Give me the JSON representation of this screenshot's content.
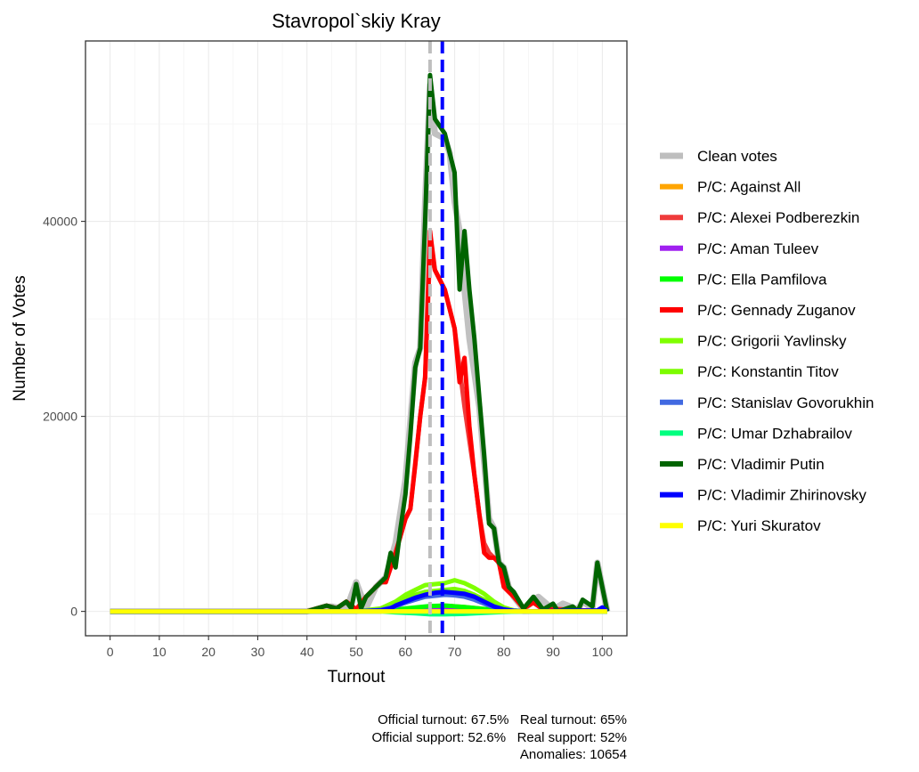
{
  "chart_data": {
    "type": "line",
    "title": "Stavropol`skiy Kray",
    "xlabel": "Turnout",
    "ylabel": "Number of Votes",
    "xlim": [
      -5,
      105
    ],
    "ylim": [
      -2500,
      58500
    ],
    "x_ticks": [
      0,
      10,
      20,
      30,
      40,
      50,
      60,
      70,
      80,
      90,
      100
    ],
    "y_ticks": [
      0,
      20000,
      40000
    ],
    "grid": true,
    "legend_position": "right",
    "vlines": [
      {
        "x": 65,
        "color": "#bebebe",
        "style": "dashed"
      },
      {
        "x": 67.5,
        "color": "#0000ff",
        "style": "dashed"
      }
    ],
    "series": [
      {
        "name": "Clean votes",
        "color": "#bebebe",
        "points": [
          [
            0,
            0
          ],
          [
            40,
            0
          ],
          [
            45,
            500
          ],
          [
            48,
            200
          ],
          [
            50,
            3000
          ],
          [
            52,
            300
          ],
          [
            54,
            2500
          ],
          [
            56,
            3500
          ],
          [
            58,
            7000
          ],
          [
            60,
            13500
          ],
          [
            62,
            25500
          ],
          [
            63,
            27000
          ],
          [
            64,
            42000
          ],
          [
            65,
            54000
          ],
          [
            66,
            49000
          ],
          [
            68,
            48500
          ],
          [
            69,
            47000
          ],
          [
            70,
            42000
          ],
          [
            71,
            39000
          ],
          [
            72,
            33000
          ],
          [
            73,
            28000
          ],
          [
            75,
            21000
          ],
          [
            77,
            9500
          ],
          [
            78,
            8500
          ],
          [
            79,
            5000
          ],
          [
            80,
            4500
          ],
          [
            81,
            2500
          ],
          [
            82,
            1500
          ],
          [
            84,
            200
          ],
          [
            87,
            1500
          ],
          [
            90,
            200
          ],
          [
            92,
            800
          ],
          [
            95,
            200
          ],
          [
            96,
            1000
          ],
          [
            98,
            300
          ],
          [
            99,
            5000
          ],
          [
            101,
            0
          ]
        ]
      },
      {
        "name": "P/C: Against All",
        "color": "#ffa500",
        "points": [
          [
            0,
            0
          ],
          [
            55,
            0
          ],
          [
            60,
            250
          ],
          [
            65,
            500
          ],
          [
            68,
            600
          ],
          [
            72,
            450
          ],
          [
            78,
            150
          ],
          [
            82,
            0
          ],
          [
            101,
            0
          ]
        ]
      },
      {
        "name": "P/C: Alexei Podberezkin",
        "color": "#ef3b3b",
        "points": [
          [
            0,
            0
          ],
          [
            40,
            0
          ],
          [
            42,
            300
          ],
          [
            44,
            600
          ],
          [
            46,
            300
          ],
          [
            48,
            1000
          ],
          [
            50,
            200
          ],
          [
            52,
            1500
          ],
          [
            54,
            2500
          ],
          [
            55,
            3000
          ],
          [
            56,
            3000
          ],
          [
            58,
            6000
          ],
          [
            60,
            9500
          ],
          [
            61,
            10500
          ],
          [
            63,
            20000
          ],
          [
            64,
            24000
          ],
          [
            65,
            37000
          ],
          [
            66,
            35000
          ],
          [
            68,
            33000
          ],
          [
            70,
            29000
          ],
          [
            71,
            25000
          ],
          [
            72,
            21000
          ],
          [
            74,
            14000
          ],
          [
            75,
            10000
          ],
          [
            76,
            7000
          ],
          [
            77,
            6000
          ],
          [
            79,
            5000
          ],
          [
            81,
            2500
          ],
          [
            82,
            1500
          ],
          [
            84,
            400
          ],
          [
            86,
            1000
          ],
          [
            88,
            300
          ],
          [
            101,
            0
          ]
        ]
      },
      {
        "name": "P/C: Aman Tuleev",
        "color": "#a020f0",
        "points": [
          [
            0,
            0
          ],
          [
            55,
            0
          ],
          [
            60,
            200
          ],
          [
            65,
            350
          ],
          [
            68,
            400
          ],
          [
            72,
            300
          ],
          [
            78,
            100
          ],
          [
            82,
            0
          ],
          [
            101,
            0
          ]
        ]
      },
      {
        "name": "P/C: Ella Pamfilova",
        "color": "#00ff00",
        "points": [
          [
            0,
            0
          ],
          [
            55,
            0
          ],
          [
            60,
            300
          ],
          [
            65,
            550
          ],
          [
            68,
            600
          ],
          [
            72,
            450
          ],
          [
            78,
            150
          ],
          [
            82,
            0
          ],
          [
            101,
            0
          ]
        ]
      },
      {
        "name": "P/C: Gennady Zuganov",
        "color": "#ff0000",
        "points": [
          [
            0,
            0
          ],
          [
            40,
            0
          ],
          [
            42,
            300
          ],
          [
            44,
            600
          ],
          [
            46,
            300
          ],
          [
            48,
            1000
          ],
          [
            50,
            200
          ],
          [
            52,
            1500
          ],
          [
            54,
            2500
          ],
          [
            55,
            3000
          ],
          [
            56,
            3000
          ],
          [
            58,
            6000
          ],
          [
            60,
            9500
          ],
          [
            61,
            10500
          ],
          [
            62,
            15000
          ],
          [
            63,
            20000
          ],
          [
            64,
            24000
          ],
          [
            65,
            39000
          ],
          [
            66,
            35000
          ],
          [
            68,
            33000
          ],
          [
            70,
            29000
          ],
          [
            71,
            23500
          ],
          [
            72,
            26000
          ],
          [
            73,
            19000
          ],
          [
            74,
            14000
          ],
          [
            75,
            10000
          ],
          [
            76,
            6000
          ],
          [
            77,
            5500
          ],
          [
            78,
            5500
          ],
          [
            79,
            5000
          ],
          [
            80,
            2500
          ],
          [
            81,
            2000
          ],
          [
            82,
            1500
          ],
          [
            84,
            300
          ],
          [
            86,
            900
          ],
          [
            88,
            200
          ],
          [
            101,
            0
          ]
        ]
      },
      {
        "name": "P/C: Grigorii Yavlinsky",
        "color": "#7fff00",
        "points": [
          [
            0,
            0
          ],
          [
            50,
            0
          ],
          [
            55,
            300
          ],
          [
            58,
            1000
          ],
          [
            60,
            1700
          ],
          [
            62,
            2200
          ],
          [
            64,
            2700
          ],
          [
            66,
            2800
          ],
          [
            68,
            2900
          ],
          [
            70,
            3200
          ],
          [
            72,
            2900
          ],
          [
            74,
            2400
          ],
          [
            76,
            1800
          ],
          [
            78,
            1000
          ],
          [
            80,
            400
          ],
          [
            82,
            100
          ],
          [
            84,
            0
          ],
          [
            101,
            0
          ]
        ]
      },
      {
        "name": "P/C: Konstantin Titov",
        "color": "#7cfc00",
        "points": [
          [
            0,
            0
          ],
          [
            50,
            0
          ],
          [
            55,
            200
          ],
          [
            58,
            800
          ],
          [
            60,
            1300
          ],
          [
            62,
            1700
          ],
          [
            64,
            2000
          ],
          [
            66,
            2100
          ],
          [
            68,
            2200
          ],
          [
            70,
            2300
          ],
          [
            72,
            2100
          ],
          [
            74,
            1700
          ],
          [
            76,
            1200
          ],
          [
            78,
            700
          ],
          [
            80,
            300
          ],
          [
            82,
            100
          ],
          [
            84,
            0
          ],
          [
            101,
            0
          ]
        ]
      },
      {
        "name": "P/C: Stanislav Govorukhin",
        "color": "#4169e1",
        "points": [
          [
            0,
            0
          ],
          [
            50,
            0
          ],
          [
            55,
            150
          ],
          [
            58,
            500
          ],
          [
            60,
            900
          ],
          [
            62,
            1200
          ],
          [
            64,
            1500
          ],
          [
            66,
            1600
          ],
          [
            68,
            1700
          ],
          [
            70,
            1650
          ],
          [
            72,
            1500
          ],
          [
            74,
            1200
          ],
          [
            76,
            800
          ],
          [
            78,
            400
          ],
          [
            80,
            150
          ],
          [
            84,
            0
          ],
          [
            101,
            0
          ]
        ]
      },
      {
        "name": "P/C: Umar Dzhabrailov",
        "color": "#00ff7f",
        "points": [
          [
            0,
            0
          ],
          [
            55,
            0
          ],
          [
            58,
            -100
          ],
          [
            62,
            -200
          ],
          [
            65,
            -300
          ],
          [
            68,
            -300
          ],
          [
            72,
            -250
          ],
          [
            76,
            -150
          ],
          [
            80,
            -50
          ],
          [
            84,
            0
          ],
          [
            101,
            0
          ]
        ]
      },
      {
        "name": "P/C: Vladimir Putin",
        "color": "#006400",
        "points": [
          [
            0,
            0
          ],
          [
            40,
            0
          ],
          [
            42,
            300
          ],
          [
            44,
            600
          ],
          [
            46,
            300
          ],
          [
            48,
            1000
          ],
          [
            49,
            300
          ],
          [
            50,
            2800
          ],
          [
            51,
            300
          ],
          [
            52,
            1500
          ],
          [
            54,
            2500
          ],
          [
            55,
            3000
          ],
          [
            56,
            3500
          ],
          [
            57,
            6000
          ],
          [
            58,
            4500
          ],
          [
            59,
            8500
          ],
          [
            60,
            12000
          ],
          [
            61,
            18000
          ],
          [
            62,
            25000
          ],
          [
            63,
            27000
          ],
          [
            64,
            40000
          ],
          [
            65,
            55000
          ],
          [
            66,
            50500
          ],
          [
            68,
            49000
          ],
          [
            69,
            47000
          ],
          [
            70,
            45000
          ],
          [
            71,
            33000
          ],
          [
            72,
            39000
          ],
          [
            73,
            33000
          ],
          [
            74,
            28000
          ],
          [
            75,
            22000
          ],
          [
            76,
            16000
          ],
          [
            77,
            9000
          ],
          [
            78,
            8500
          ],
          [
            79,
            5000
          ],
          [
            80,
            4500
          ],
          [
            81,
            2500
          ],
          [
            82,
            2000
          ],
          [
            84,
            300
          ],
          [
            86,
            1500
          ],
          [
            88,
            200
          ],
          [
            90,
            800
          ],
          [
            91,
            0
          ],
          [
            94,
            500
          ],
          [
            95,
            0
          ],
          [
            96,
            1200
          ],
          [
            98,
            500
          ],
          [
            99,
            5000
          ],
          [
            101,
            0
          ]
        ]
      },
      {
        "name": "P/C: Vladimir Zhirinovsky",
        "color": "#0000ff",
        "points": [
          [
            0,
            0
          ],
          [
            50,
            0
          ],
          [
            55,
            100
          ],
          [
            57,
            300
          ],
          [
            58,
            600
          ],
          [
            60,
            1000
          ],
          [
            62,
            1400
          ],
          [
            64,
            1700
          ],
          [
            66,
            1900
          ],
          [
            68,
            2000
          ],
          [
            70,
            1900
          ],
          [
            72,
            1800
          ],
          [
            74,
            1500
          ],
          [
            76,
            1000
          ],
          [
            78,
            500
          ],
          [
            80,
            200
          ],
          [
            82,
            50
          ],
          [
            84,
            0
          ],
          [
            99,
            100
          ],
          [
            100,
            400
          ],
          [
            101,
            0
          ]
        ]
      },
      {
        "name": "P/C: Yuri Skuratov",
        "color": "#ffff00",
        "points": [
          [
            0,
            0
          ],
          [
            101,
            0
          ]
        ]
      }
    ],
    "caption_lines": [
      "Official turnout: 67.5%   Real turnout: 65%",
      "Official support: 52.6%   Real support: 52%",
      "Anomalies: 10654"
    ]
  }
}
